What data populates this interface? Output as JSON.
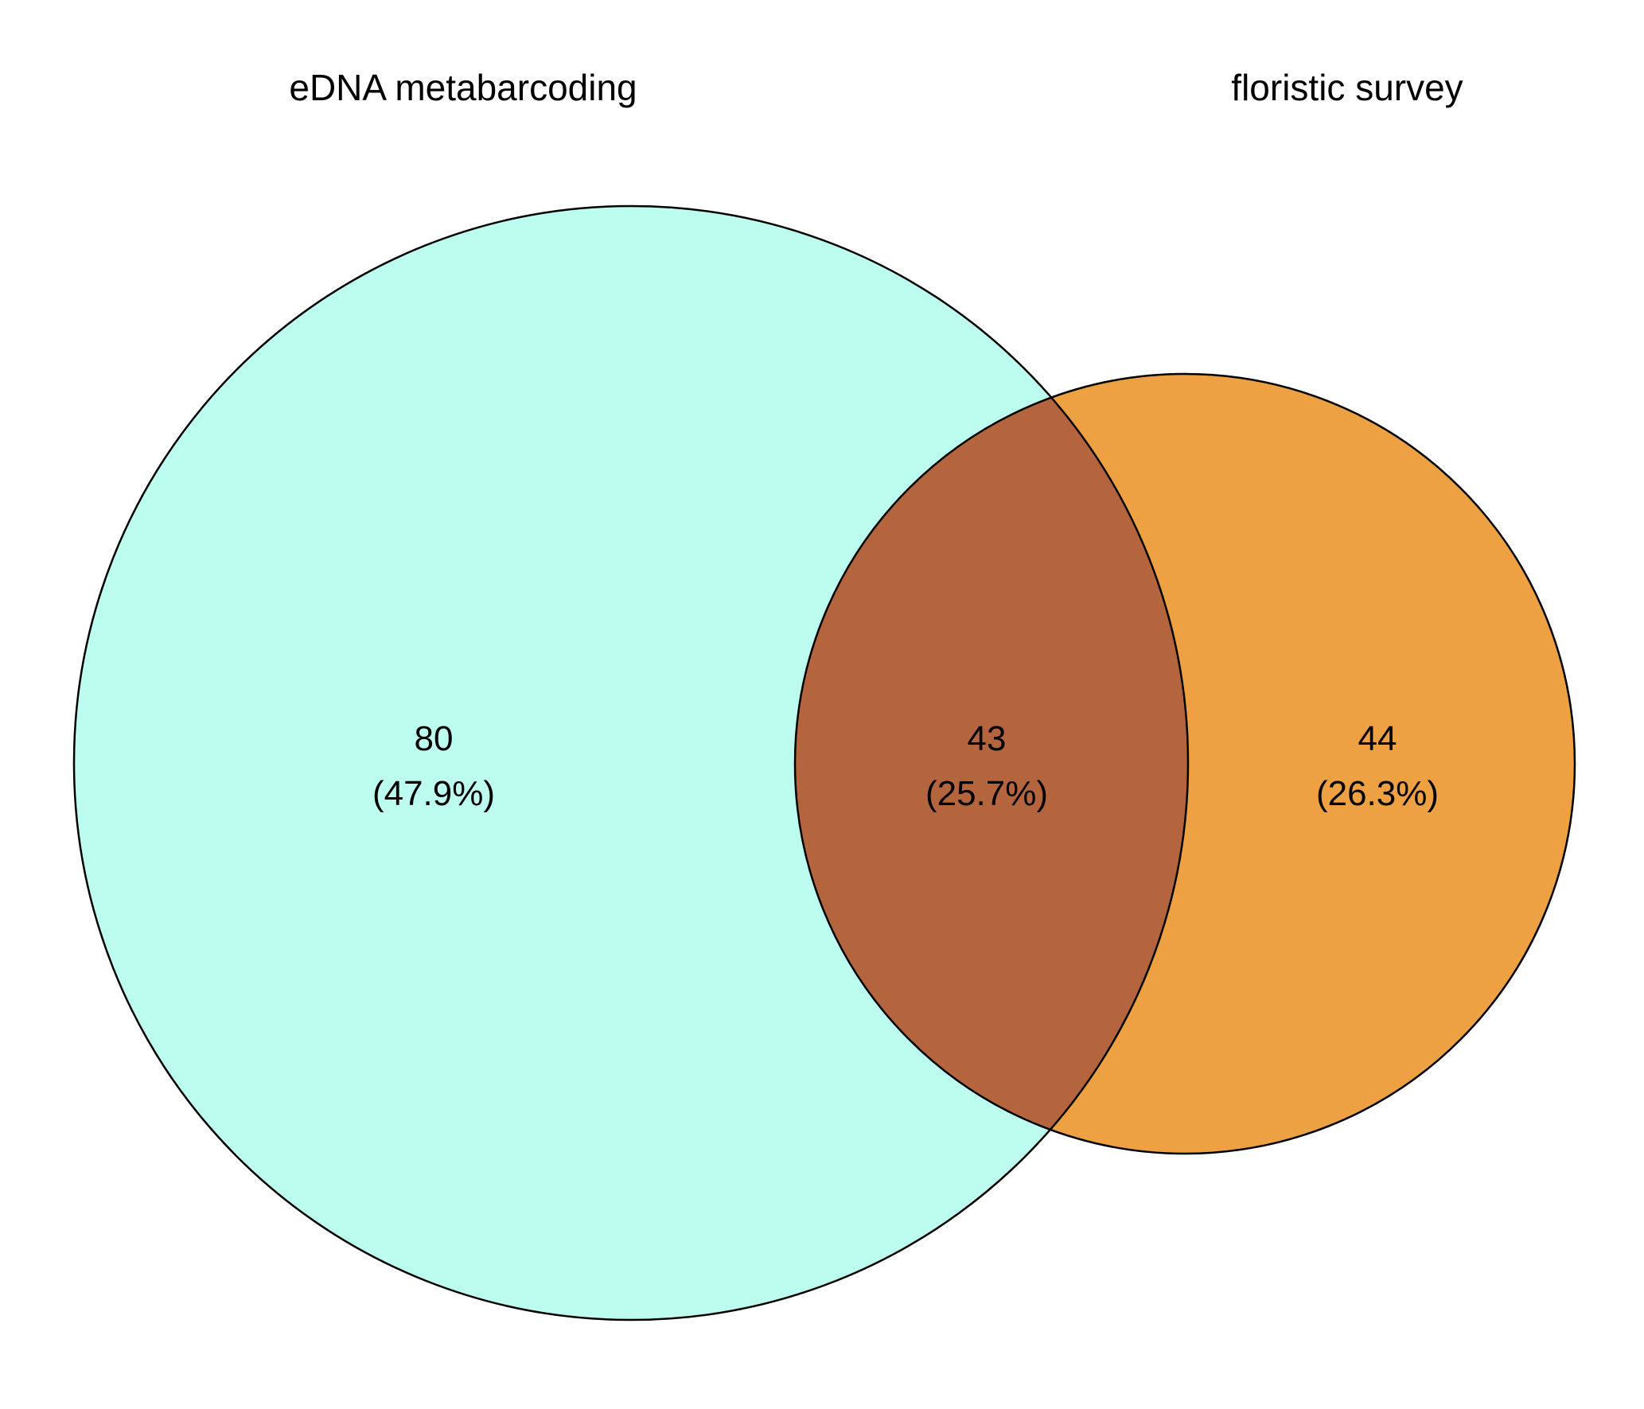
{
  "diagram": {
    "type": "venn-2",
    "sets": [
      {
        "name": "eDNA metabarcoding",
        "color": "#bdfdf0"
      },
      {
        "name": "floristic survey",
        "color": "#eda142"
      }
    ],
    "overlap_color": "#b5653d",
    "outline_color": "#000000",
    "regions": {
      "left_only": {
        "count": "80",
        "percent": "(47.9%)"
      },
      "both": {
        "count": "43",
        "percent": "(25.7%)"
      },
      "right_only": {
        "count": "44",
        "percent": "(26.3%)"
      }
    }
  }
}
